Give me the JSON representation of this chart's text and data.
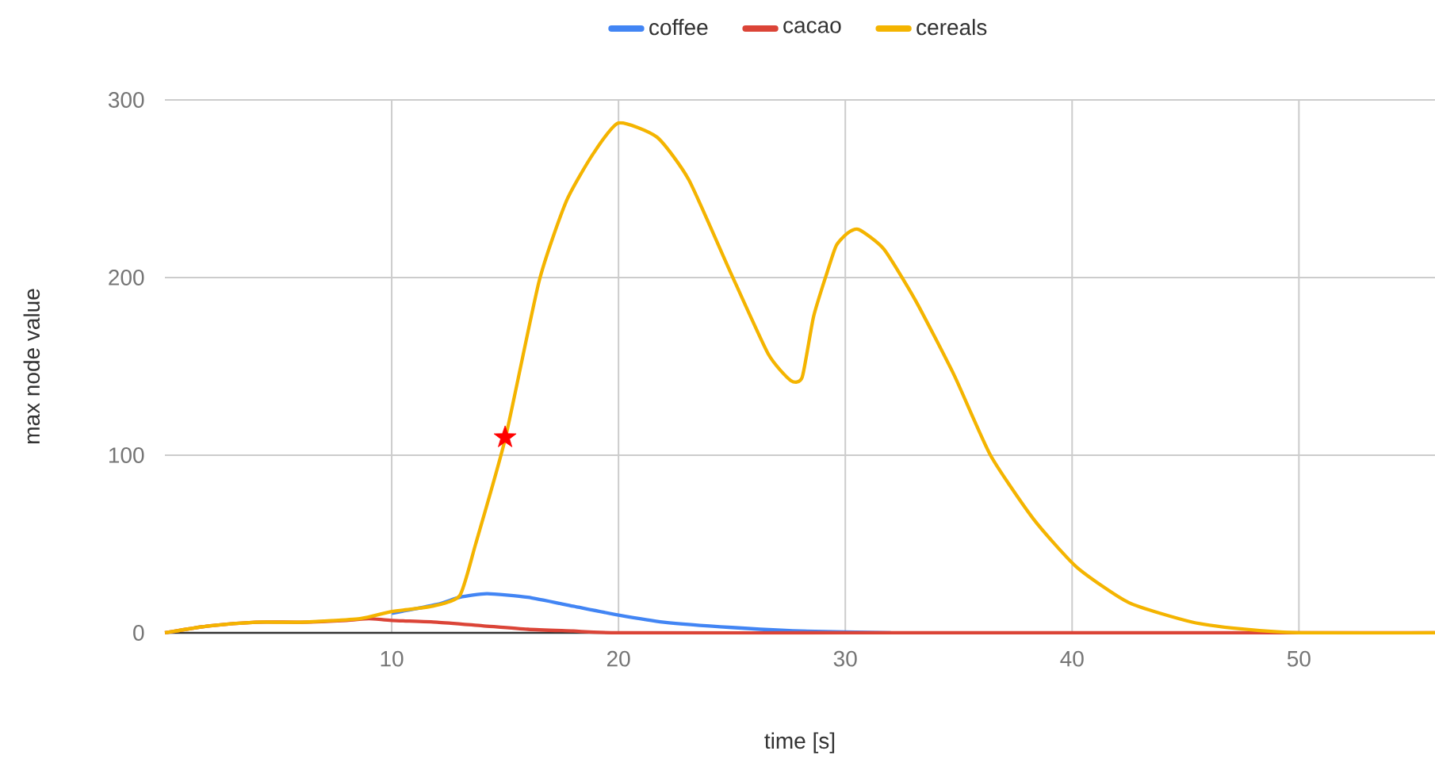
{
  "chart_data": {
    "type": "line",
    "xlabel": "time [s]",
    "ylabel": "max node value",
    "xlim": [
      0,
      56
    ],
    "ylim": [
      0,
      300
    ],
    "xticks": [
      10,
      20,
      30,
      40,
      50
    ],
    "yticks": [
      0,
      100,
      200,
      300
    ],
    "grid": true,
    "legend": "top",
    "series": [
      {
        "name": "coffee",
        "color": "#4285f4",
        "x": [
          10,
          12,
          13,
          14.2,
          16,
          18,
          20,
          22,
          25,
          28,
          32
        ],
        "values": [
          11,
          16,
          20,
          22,
          20,
          15,
          10,
          6,
          3,
          1,
          0
        ]
      },
      {
        "name": "cacao",
        "color": "#db4437",
        "x": [
          0,
          2,
          4,
          6,
          8,
          9,
          10,
          12,
          14,
          16,
          18,
          20,
          30,
          56
        ],
        "values": [
          0,
          4,
          6,
          6,
          7,
          8,
          7,
          6,
          4,
          2,
          1,
          0,
          0,
          0
        ]
      },
      {
        "name": "cereals",
        "color": "#f4b400",
        "x": [
          0,
          2,
          4,
          6,
          8.6,
          10,
          11.8,
          13,
          13.7,
          15,
          16.5,
          17.7,
          18.9,
          20,
          21.7,
          23.1,
          24.9,
          26.6,
          27.6,
          28.1,
          28.6,
          29.2,
          29.6,
          30.1,
          30.6,
          31.7,
          33.1,
          34.8,
          36.4,
          38.3,
          40.2,
          42.5,
          45.3,
          47.6,
          50,
          56
        ],
        "values": [
          0,
          4,
          6,
          6,
          8,
          12,
          15,
          21,
          50,
          109,
          198,
          243,
          270,
          287,
          279,
          255,
          204,
          157,
          142,
          144,
          178,
          203,
          218,
          225,
          227,
          216,
          187,
          145,
          100,
          64,
          37,
          17,
          6,
          2,
          0,
          0
        ]
      },
      {
        "type": "scatter",
        "marker": "star",
        "color": "#ff0000",
        "x": [
          15
        ],
        "values": [
          110
        ]
      }
    ]
  }
}
